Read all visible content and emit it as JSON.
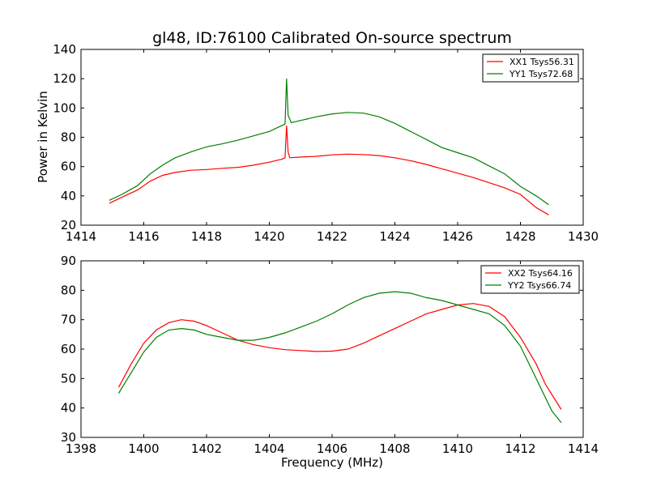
{
  "chart_data": [
    {
      "type": "line",
      "title": "gl48, ID:76100 Calibrated On-source spectrum",
      "xlabel": "",
      "ylabel": "Power in Kelvin",
      "xlim": [
        1414,
        1430
      ],
      "ylim": [
        20,
        140
      ],
      "xticks": [
        1414,
        1416,
        1418,
        1420,
        1422,
        1424,
        1426,
        1428,
        1430
      ],
      "yticks": [
        20,
        40,
        60,
        80,
        100,
        120,
        140
      ],
      "grid": false,
      "legend_position": "top-right",
      "series": [
        {
          "name": "XX1 Tsys56.31",
          "color": "#ff0000",
          "points": [
            [
              1414.9,
              35
            ],
            [
              1415.3,
              39
            ],
            [
              1415.8,
              44
            ],
            [
              1416.2,
              50
            ],
            [
              1416.6,
              54
            ],
            [
              1417,
              56
            ],
            [
              1417.5,
              57.5
            ],
            [
              1418,
              58
            ],
            [
              1418.5,
              58.8
            ],
            [
              1419,
              59.5
            ],
            [
              1419.5,
              61
            ],
            [
              1420,
              63
            ],
            [
              1420.4,
              65
            ],
            [
              1420.5,
              66
            ],
            [
              1420.55,
              88
            ],
            [
              1420.6,
              70
            ],
            [
              1420.65,
              66
            ],
            [
              1421,
              66.5
            ],
            [
              1421.5,
              67
            ],
            [
              1422,
              68
            ],
            [
              1422.5,
              68.5
            ],
            [
              1423,
              68.2
            ],
            [
              1423.5,
              67.5
            ],
            [
              1424,
              66
            ],
            [
              1424.5,
              64
            ],
            [
              1425,
              61.5
            ],
            [
              1425.5,
              58.5
            ],
            [
              1426,
              55.5
            ],
            [
              1426.5,
              52.5
            ],
            [
              1427,
              49
            ],
            [
              1427.5,
              45.5
            ],
            [
              1428,
              41
            ],
            [
              1428.5,
              32
            ],
            [
              1428.9,
              27
            ]
          ]
        },
        {
          "name": "YY1 Tsys72.68",
          "color": "#008000",
          "points": [
            [
              1414.9,
              37
            ],
            [
              1415.3,
              41
            ],
            [
              1415.8,
              47
            ],
            [
              1416.2,
              55
            ],
            [
              1416.6,
              61
            ],
            [
              1417,
              66
            ],
            [
              1417.5,
              70
            ],
            [
              1418,
              73.5
            ],
            [
              1418.5,
              75.5
            ],
            [
              1419,
              78
            ],
            [
              1419.5,
              81
            ],
            [
              1420,
              84
            ],
            [
              1420.3,
              87
            ],
            [
              1420.5,
              89
            ],
            [
              1420.55,
              120
            ],
            [
              1420.6,
              95
            ],
            [
              1420.7,
              90
            ],
            [
              1421,
              91.5
            ],
            [
              1421.5,
              94
            ],
            [
              1422,
              96
            ],
            [
              1422.5,
              97
            ],
            [
              1423,
              96.5
            ],
            [
              1423.5,
              94
            ],
            [
              1424,
              89.5
            ],
            [
              1424.5,
              84
            ],
            [
              1425,
              78.5
            ],
            [
              1425.5,
              73
            ],
            [
              1426,
              69.5
            ],
            [
              1426.5,
              66
            ],
            [
              1427,
              60.5
            ],
            [
              1427.5,
              55
            ],
            [
              1428,
              46.5
            ],
            [
              1428.5,
              40
            ],
            [
              1428.9,
              34
            ]
          ]
        }
      ]
    },
    {
      "type": "line",
      "title": "",
      "xlabel": "Frequency (MHz)",
      "ylabel": "",
      "xlim": [
        1398,
        1414
      ],
      "ylim": [
        30,
        90
      ],
      "xticks": [
        1398,
        1400,
        1402,
        1404,
        1406,
        1408,
        1410,
        1412,
        1414
      ],
      "yticks": [
        30,
        40,
        50,
        60,
        70,
        80,
        90
      ],
      "grid": false,
      "legend_position": "top-right",
      "series": [
        {
          "name": "XX2 Tsys64.16",
          "color": "#ff0000",
          "points": [
            [
              1399.2,
              47
            ],
            [
              1399.6,
              55
            ],
            [
              1400,
              62
            ],
            [
              1400.4,
              66.5
            ],
            [
              1400.8,
              69
            ],
            [
              1401.2,
              70
            ],
            [
              1401.6,
              69.5
            ],
            [
              1402,
              68
            ],
            [
              1402.5,
              65.5
            ],
            [
              1403,
              63
            ],
            [
              1403.5,
              61.5
            ],
            [
              1404,
              60.5
            ],
            [
              1404.5,
              59.8
            ],
            [
              1405,
              59.5
            ],
            [
              1405.5,
              59.2
            ],
            [
              1406,
              59.3
            ],
            [
              1406.5,
              60
            ],
            [
              1407,
              62
            ],
            [
              1407.5,
              64.5
            ],
            [
              1408,
              67
            ],
            [
              1408.5,
              69.5
            ],
            [
              1409,
              72
            ],
            [
              1409.5,
              73.5
            ],
            [
              1410,
              75
            ],
            [
              1410.5,
              75.5
            ],
            [
              1411,
              74.5
            ],
            [
              1411.5,
              71
            ],
            [
              1412,
              64
            ],
            [
              1412.5,
              55
            ],
            [
              1412.8,
              48
            ],
            [
              1413.3,
              39.5
            ]
          ]
        },
        {
          "name": "YY2 Tsys66.74",
          "color": "#008000",
          "points": [
            [
              1399.2,
              45
            ],
            [
              1399.6,
              52
            ],
            [
              1400,
              59
            ],
            [
              1400.4,
              64
            ],
            [
              1400.8,
              66.5
            ],
            [
              1401.2,
              67
            ],
            [
              1401.6,
              66.5
            ],
            [
              1402,
              65
            ],
            [
              1402.5,
              64
            ],
            [
              1403,
              63
            ],
            [
              1403.5,
              63
            ],
            [
              1404,
              64
            ],
            [
              1404.5,
              65.5
            ],
            [
              1405,
              67.5
            ],
            [
              1405.5,
              69.5
            ],
            [
              1406,
              72
            ],
            [
              1406.5,
              75
            ],
            [
              1407,
              77.5
            ],
            [
              1407.5,
              79
            ],
            [
              1408,
              79.5
            ],
            [
              1408.5,
              79
            ],
            [
              1409,
              77.5
            ],
            [
              1409.5,
              76.5
            ],
            [
              1410,
              75
            ],
            [
              1410.5,
              73.5
            ],
            [
              1411,
              72
            ],
            [
              1411.5,
              68
            ],
            [
              1412,
              61
            ],
            [
              1412.5,
              50
            ],
            [
              1413,
              39
            ],
            [
              1413.3,
              35
            ]
          ]
        }
      ]
    }
  ]
}
